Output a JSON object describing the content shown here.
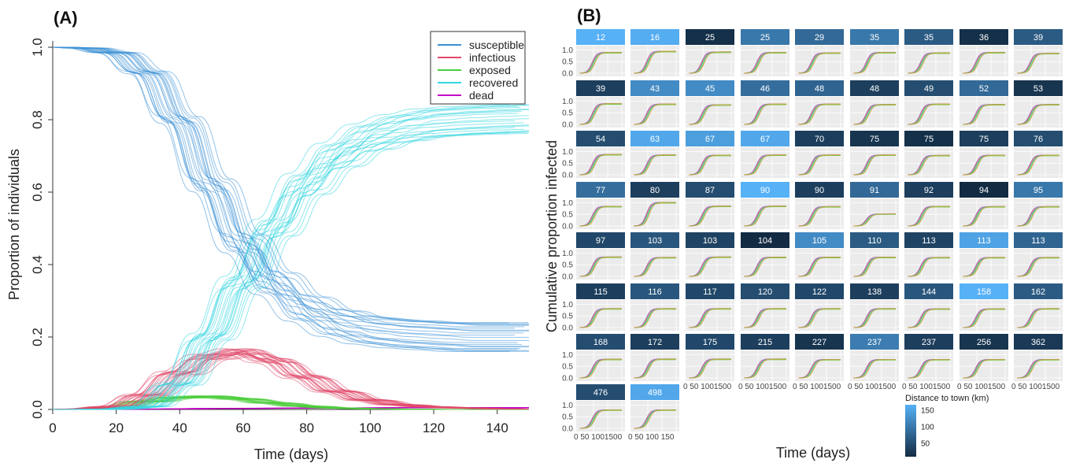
{
  "panels": {
    "a": {
      "label": "(A)"
    },
    "b": {
      "label": "(B)"
    }
  },
  "chart_data": [
    {
      "type": "line",
      "panel": "A",
      "xlabel": "Time (days)",
      "ylabel": "Proportion of individuals",
      "xlim": [
        0,
        150
      ],
      "ylim": [
        0,
        1.0
      ],
      "xticks": [
        0,
        20,
        40,
        60,
        80,
        100,
        120,
        140
      ],
      "yticks": [
        "0.0",
        "0.2",
        "0.4",
        "0.6",
        "0.8",
        "1.0"
      ],
      "grid": false,
      "legend_position": "top-right",
      "series": [
        {
          "name": "susceptible",
          "color": "#3a8fd6",
          "x": [
            0,
            10,
            20,
            30,
            40,
            50,
            60,
            70,
            80,
            90,
            100,
            110,
            120,
            130,
            140,
            150
          ],
          "y": [
            1.0,
            0.998,
            0.985,
            0.93,
            0.8,
            0.62,
            0.46,
            0.35,
            0.28,
            0.24,
            0.22,
            0.21,
            0.205,
            0.2,
            0.2,
            0.2
          ]
        },
        {
          "name": "infectious",
          "color": "#e0496a",
          "x": [
            0,
            10,
            20,
            30,
            40,
            50,
            60,
            70,
            80,
            90,
            100,
            110,
            120,
            130,
            140,
            150
          ],
          "y": [
            0.0,
            0.001,
            0.008,
            0.04,
            0.1,
            0.145,
            0.16,
            0.135,
            0.09,
            0.05,
            0.026,
            0.013,
            0.007,
            0.004,
            0.002,
            0.001
          ]
        },
        {
          "name": "exposed",
          "color": "#4ccd3c",
          "x": [
            0,
            10,
            20,
            30,
            40,
            50,
            60,
            70,
            80,
            90,
            100,
            110,
            120,
            130,
            140,
            150
          ],
          "y": [
            0.0,
            0.001,
            0.006,
            0.022,
            0.033,
            0.036,
            0.029,
            0.018,
            0.009,
            0.004,
            0.002,
            0.001,
            0.0,
            0.0,
            0.0,
            0.0
          ]
        },
        {
          "name": "recovered",
          "color": "#33d6e0",
          "x": [
            0,
            10,
            20,
            30,
            40,
            50,
            60,
            70,
            80,
            90,
            100,
            110,
            120,
            130,
            140,
            150
          ],
          "y": [
            0.0,
            0.0,
            0.001,
            0.008,
            0.07,
            0.2,
            0.35,
            0.5,
            0.62,
            0.7,
            0.75,
            0.775,
            0.79,
            0.796,
            0.8,
            0.802
          ]
        },
        {
          "name": "dead",
          "color": "#c400c4",
          "x": [
            0,
            30,
            60,
            90,
            120,
            150
          ],
          "y": [
            0.0,
            0.001,
            0.003,
            0.004,
            0.005,
            0.005
          ]
        }
      ]
    },
    {
      "type": "line",
      "panel": "B",
      "xlabel": "Time (days)",
      "ylabel": "Cumulative proportion infected",
      "facet_xticks": [
        "0",
        "50",
        "100",
        "150"
      ],
      "facet_xtick_label_row": "0 50 1001500",
      "facet_xtick_label_last": "0 50 100 150",
      "facet_yticks": [
        "0.0",
        "0.5",
        "1.0"
      ],
      "facet_ylim": [
        0,
        1.05
      ],
      "facet_xlim": [
        0,
        150
      ],
      "facet_strip_values_km": [
        12,
        16,
        25,
        25,
        29,
        35,
        35,
        36,
        39,
        39,
        43,
        45,
        46,
        48,
        48,
        49,
        52,
        53,
        54,
        63,
        67,
        67,
        70,
        75,
        75,
        75,
        76,
        77,
        80,
        87,
        90,
        90,
        91,
        92,
        94,
        95,
        97,
        103,
        103,
        104,
        105,
        110,
        113,
        113,
        113,
        115,
        116,
        117,
        120,
        122,
        138,
        144,
        158,
        162,
        168,
        172,
        175,
        215,
        227,
        237,
        237,
        256,
        362,
        476,
        498
      ],
      "facet_final_cumulative": [
        0.9,
        0.95,
        0.92,
        0.9,
        0.88,
        0.9,
        0.88,
        0.9,
        0.86,
        0.9,
        0.88,
        0.85,
        0.88,
        0.88,
        0.86,
        0.88,
        0.86,
        0.86,
        0.88,
        0.86,
        0.85,
        0.86,
        0.86,
        0.86,
        0.84,
        0.85,
        0.85,
        0.85,
        1.02,
        0.86,
        0.86,
        0.84,
        0.52,
        0.85,
        0.84,
        0.84,
        0.84,
        0.82,
        0.84,
        0.83,
        0.83,
        0.83,
        0.82,
        0.82,
        0.82,
        0.82,
        0.82,
        0.82,
        0.82,
        0.82,
        0.82,
        0.81,
        0.81,
        0.82,
        0.81,
        0.82,
        0.82,
        0.82,
        0.8,
        0.8,
        0.8,
        0.8,
        0.8,
        0.8,
        0.8
      ],
      "facet_strip_fill_values": [
        150,
        145,
        15,
        90,
        75,
        90,
        60,
        15,
        60,
        30,
        110,
        110,
        80,
        70,
        30,
        45,
        75,
        20,
        45,
        140,
        130,
        140,
        30,
        20,
        15,
        30,
        45,
        80,
        30,
        45,
        150,
        30,
        75,
        30,
        10,
        90,
        40,
        55,
        35,
        10,
        110,
        60,
        35,
        135,
        70,
        30,
        55,
        40,
        45,
        40,
        30,
        55,
        150,
        60,
        45,
        30,
        40,
        30,
        20,
        95,
        30,
        20,
        25,
        45,
        140
      ],
      "facet_line_colors": [
        "#9b59b6",
        "#e0496a",
        "#4ccd3c",
        "#33d6e0",
        "#a0c43a",
        "#d59a3a",
        "#5aa0f0",
        "#c400c4"
      ],
      "colorbar": {
        "title": "Distance to town (km)",
        "ticks": [
          "150",
          "100",
          "50"
        ],
        "low_color": "#132b43",
        "high_color": "#56b1f7"
      }
    }
  ]
}
